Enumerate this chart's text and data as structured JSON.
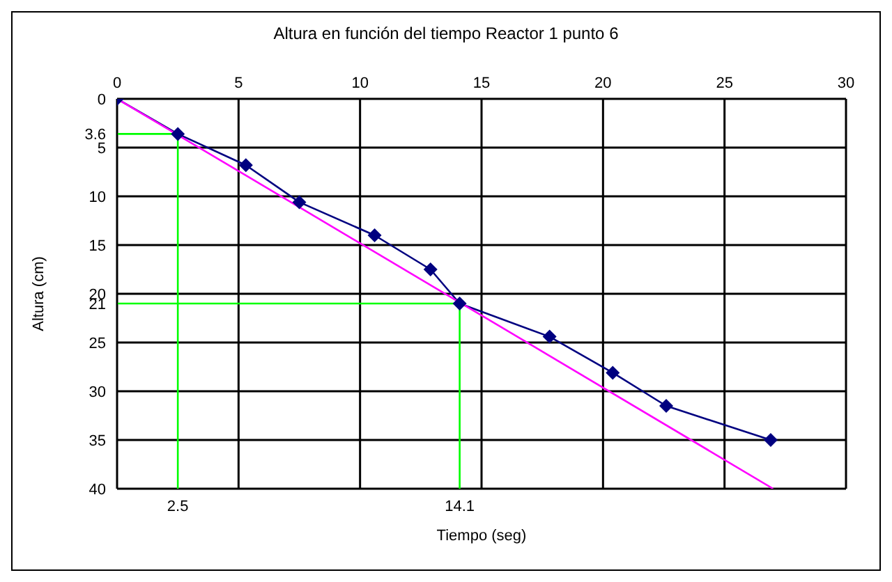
{
  "chart_data": {
    "type": "line",
    "title": "Altura en función del tiempo Reactor 1 punto 6",
    "xlabel": "Tiempo (seg)",
    "ylabel": "Altura (cm)",
    "xlim": [
      0,
      30
    ],
    "xticks": [
      0,
      5,
      10,
      15,
      20,
      25,
      30
    ],
    "ylim": [
      40,
      0
    ],
    "yticks": [
      0,
      {
        "value": 3.6,
        "label": "3.6"
      },
      5,
      10,
      15,
      20,
      {
        "value": 21,
        "label": "21"
      },
      25,
      30,
      35,
      40
    ],
    "grid": true,
    "marker": "diamond",
    "line_style": "solid",
    "legend": false,
    "series": [
      {
        "color": "#000080",
        "x": [
          0,
          2.5,
          5.3,
          7.5,
          10.6,
          12.9,
          14.1,
          17.8,
          20.4,
          22.6,
          26.9
        ],
        "values": [
          0,
          3.6,
          6.8,
          10.6,
          14,
          17.5,
          21,
          24.4,
          28.1,
          31.5,
          35
        ]
      },
      {
        "color": "#ff00ff",
        "marker": "none",
        "x": [
          0,
          27
        ],
        "values": [
          0,
          40
        ]
      },
      {
        "color": "#00ff00",
        "marker": "none",
        "x": [
          0,
          2.5,
          2.5
        ],
        "values": [
          3.6,
          3.6,
          40
        ]
      },
      {
        "color": "#00ff00",
        "marker": "none",
        "x": [
          0,
          14.1,
          14.1
        ],
        "values": [
          21,
          21,
          40
        ]
      }
    ],
    "annotations": [
      {
        "text": "2.5",
        "x": 2.5,
        "y": 40
      },
      {
        "text": "14.1",
        "x": 14.1,
        "y": 40
      }
    ]
  }
}
